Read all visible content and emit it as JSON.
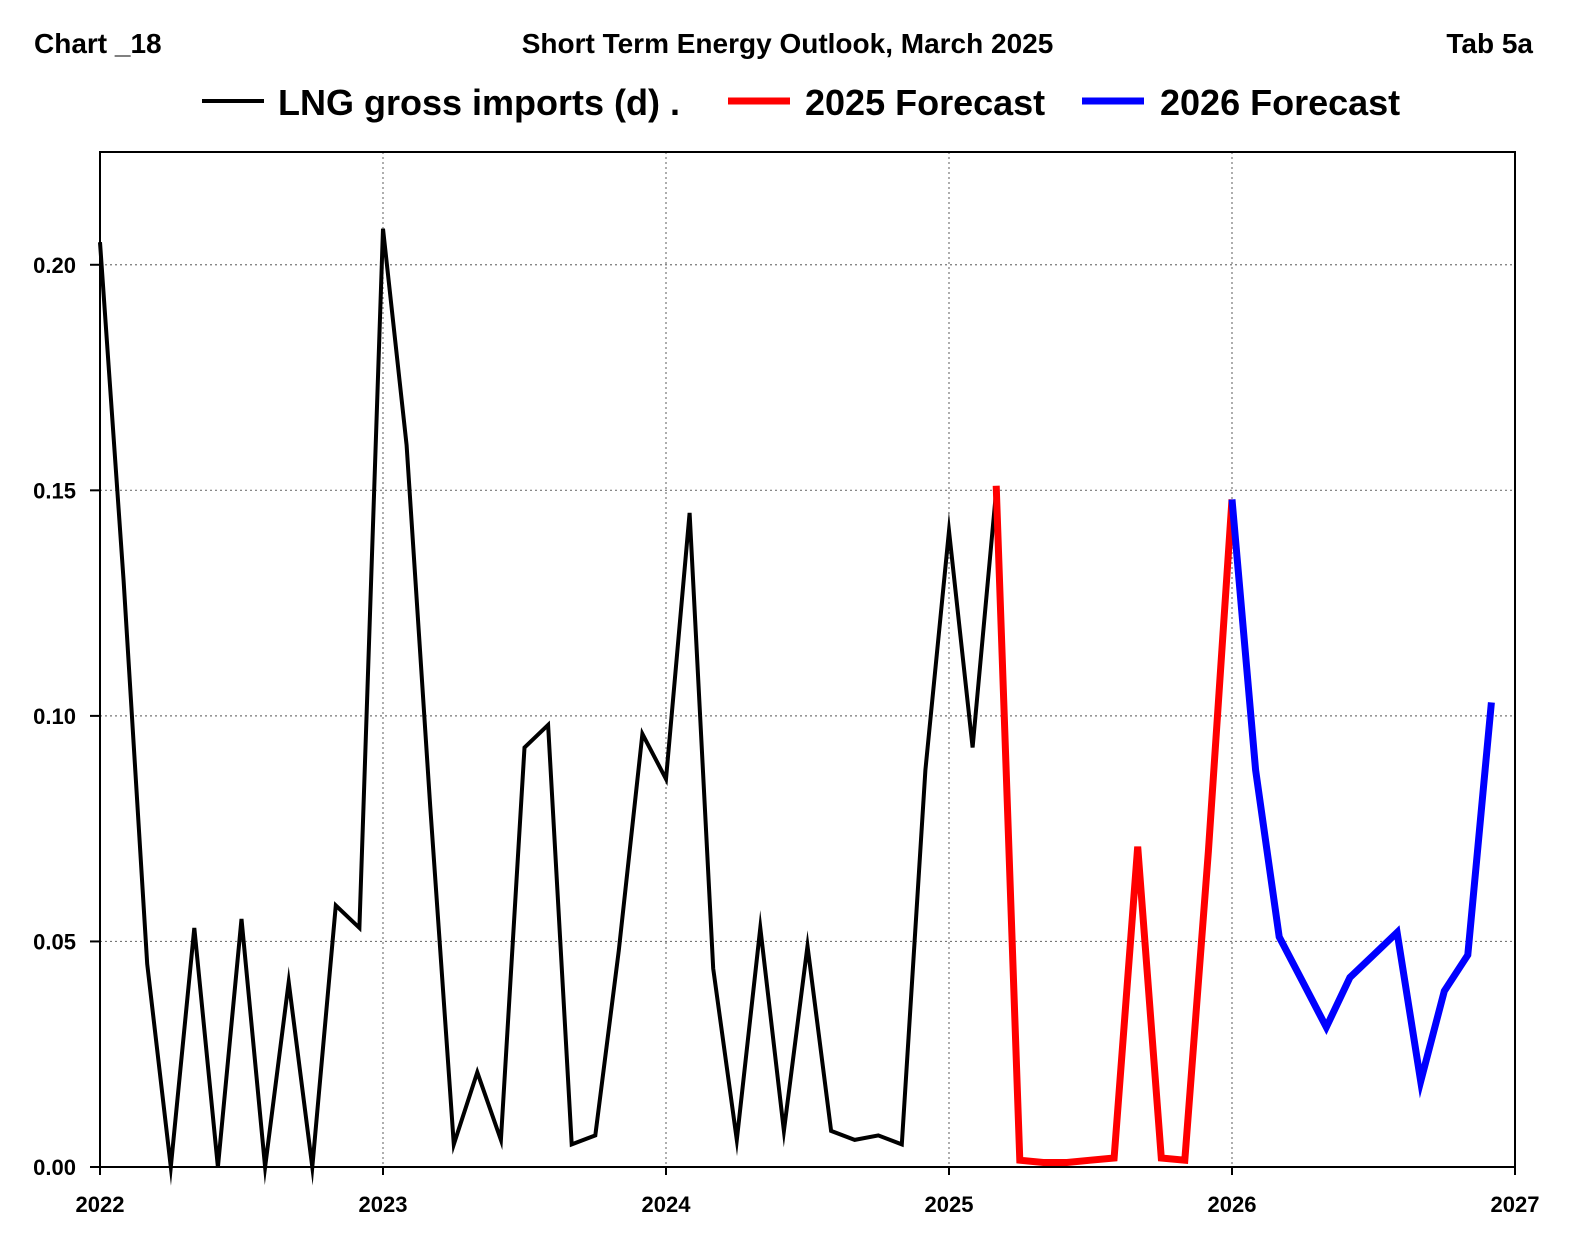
{
  "header": {
    "chart_id": "Chart _18",
    "title": "Short Term Energy Outlook, March 2025",
    "tab": "Tab 5a"
  },
  "chart_data": {
    "type": "line",
    "title": "Short Term Energy Outlook, March 2025",
    "xlabel": "",
    "ylabel": "",
    "xlim": [
      2022,
      2027
    ],
    "ylim": [
      0,
      0.225
    ],
    "grid": true,
    "legend_position": "top",
    "x_ticks": [
      "2022",
      "2023",
      "2024",
      "2025",
      "2026",
      "2027"
    ],
    "y_ticks": [
      "0.00",
      "0.05",
      "0.10",
      "0.15",
      "0.20"
    ],
    "y_tick_values": [
      0,
      0.05,
      0.1,
      0.15,
      0.2
    ],
    "series": [
      {
        "name": "LNG gross imports (d) .",
        "color": "#000000",
        "start": [
          2022,
          1
        ],
        "values": [
          0.205,
          0.13,
          0.045,
          0.0,
          0.053,
          0.0,
          0.055,
          0.0,
          0.041,
          0.0,
          0.058,
          0.053,
          0.208,
          0.16,
          0.08,
          0.005,
          0.021,
          0.006,
          0.093,
          0.098,
          0.005,
          0.007,
          0.048,
          0.096,
          0.086,
          0.145,
          0.044,
          0.006,
          0.053,
          0.008,
          0.049,
          0.008,
          0.006,
          0.007,
          0.005,
          0.088,
          0.141,
          0.093,
          0.15
        ]
      },
      {
        "name": "2025 Forecast",
        "color": "#ff0000",
        "start": [
          2025,
          3
        ],
        "values": [
          0.151,
          0.0015,
          0.001,
          0.001,
          0.0015,
          0.002,
          0.071,
          0.002,
          0.0015,
          0.07,
          0.148
        ]
      },
      {
        "name": "2026 Forecast",
        "color": "#0000ff",
        "start": [
          2026,
          1
        ],
        "values": [
          0.148,
          0.088,
          0.051,
          0.041,
          0.031,
          0.042,
          0.047,
          0.052,
          0.019,
          0.039,
          0.047,
          0.103
        ]
      }
    ]
  }
}
